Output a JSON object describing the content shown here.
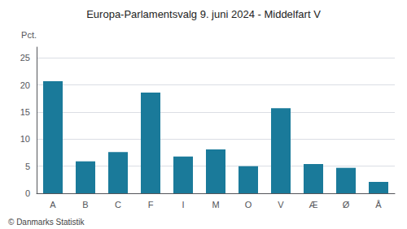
{
  "chart_data": {
    "type": "bar",
    "title": "Europa-Parlamentsvalg 9. juni 2024 - Middelfart V",
    "ylabel": "Pct.",
    "annotations": [
      "© Danmarks Statistik"
    ],
    "categories": [
      "A",
      "B",
      "C",
      "F",
      "I",
      "M",
      "O",
      "V",
      "Æ",
      "Ø",
      "Å"
    ],
    "values": [
      20.7,
      5.9,
      7.6,
      18.6,
      6.8,
      8.1,
      5.0,
      15.7,
      5.4,
      4.7,
      2.1
    ],
    "color": "#1a7a9a",
    "ylim": [
      0,
      27
    ],
    "yticks": [
      0,
      5,
      10,
      15,
      20,
      25
    ],
    "grid": true
  }
}
